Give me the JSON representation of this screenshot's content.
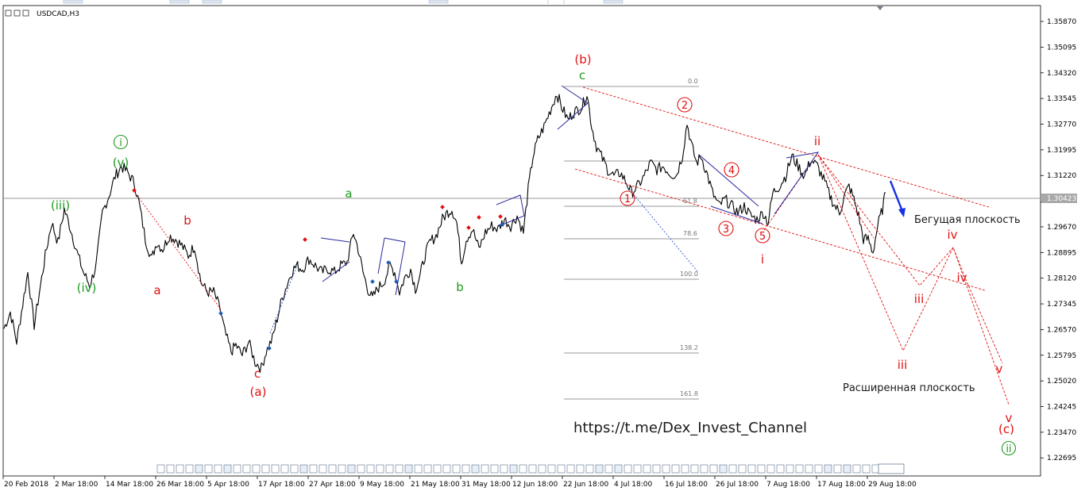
{
  "window": {
    "symbol_label": "USDCAD,H3"
  },
  "chart_data": {
    "type": "line",
    "symbol": "USDCAD",
    "timeframe": "H3",
    "ylim": [
      1.2215,
      1.3635
    ],
    "y_ticks": [
      "1.35870",
      "1.35095",
      "1.34320",
      "1.33545",
      "1.32770",
      "1.31995",
      "1.31220",
      "1.30423",
      "1.29670",
      "1.28895",
      "1.28120",
      "1.27345",
      "1.26570",
      "1.25795",
      "1.25020",
      "1.24245",
      "1.23470",
      "1.22695"
    ],
    "x_ticks": [
      "20 Feb 2018",
      "2 Mar 18:00",
      "14 Mar 18:00",
      "26 Mar 18:00",
      "5 Apr 18:00",
      "17 Apr 18:00",
      "27 Apr 18:00",
      "9 May 18:00",
      "21 May 18:00",
      "31 May 18:00",
      "12 Jun 18:00",
      "22 Jun 18:00",
      "4 Jul 18:00",
      "16 Jul 18:00",
      "26 Jul 18:00",
      "7 Aug 18:00",
      "17 Aug 18:00",
      "29 Aug 18:00"
    ],
    "current_price": "1.30423",
    "series": [
      {
        "values": [
          [
            0,
            1.266
          ],
          [
            8,
            1.271
          ],
          [
            16,
            1.262
          ],
          [
            22,
            1.271
          ],
          [
            30,
            1.283
          ],
          [
            38,
            1.267
          ],
          [
            46,
            1.279
          ],
          [
            52,
            1.288
          ],
          [
            60,
            1.298
          ],
          [
            68,
            1.292
          ],
          [
            76,
            1.302
          ],
          [
            84,
            1.296
          ],
          [
            92,
            1.289
          ],
          [
            100,
            1.283
          ],
          [
            108,
            1.279
          ],
          [
            116,
            1.285
          ],
          [
            124,
            1.301
          ],
          [
            132,
            1.306
          ],
          [
            140,
            1.312
          ],
          [
            148,
            1.315
          ],
          [
            156,
            1.313
          ],
          [
            164,
            1.31
          ],
          [
            170,
            1.304
          ],
          [
            178,
            1.293
          ],
          [
            186,
            1.287
          ],
          [
            192,
            1.292
          ],
          [
            200,
            1.29
          ],
          [
            208,
            1.294
          ],
          [
            216,
            1.293
          ],
          [
            224,
            1.291
          ],
          [
            232,
            1.288
          ],
          [
            240,
            1.291
          ],
          [
            248,
            1.28
          ],
          [
            256,
            1.277
          ],
          [
            264,
            1.277
          ],
          [
            272,
            1.272
          ],
          [
            278,
            1.265
          ],
          [
            286,
            1.259
          ],
          [
            292,
            1.261
          ],
          [
            300,
            1.258
          ],
          [
            308,
            1.262
          ],
          [
            316,
            1.256
          ],
          [
            324,
            1.254
          ],
          [
            330,
            1.259
          ],
          [
            338,
            1.263
          ],
          [
            344,
            1.269
          ],
          [
            350,
            1.275
          ],
          [
            356,
            1.279
          ],
          [
            362,
            1.283
          ],
          [
            368,
            1.285
          ],
          [
            376,
            1.284
          ],
          [
            384,
            1.287
          ],
          [
            392,
            1.285
          ],
          [
            400,
            1.283
          ],
          [
            408,
            1.284
          ],
          [
            416,
            1.283
          ],
          [
            424,
            1.285
          ],
          [
            432,
            1.286
          ],
          [
            440,
            1.295
          ],
          [
            446,
            1.29
          ],
          [
            452,
            1.283
          ],
          [
            458,
            1.278
          ],
          [
            464,
            1.275
          ],
          [
            470,
            1.278
          ],
          [
            478,
            1.28
          ],
          [
            486,
            1.285
          ],
          [
            492,
            1.283
          ],
          [
            498,
            1.277
          ],
          [
            504,
            1.281
          ],
          [
            512,
            1.284
          ],
          [
            518,
            1.278
          ],
          [
            524,
            1.282
          ],
          [
            530,
            1.288
          ],
          [
            536,
            1.292
          ],
          [
            544,
            1.294
          ],
          [
            552,
            1.299
          ],
          [
            558,
            1.301
          ],
          [
            564,
            1.302
          ],
          [
            570,
            1.298
          ],
          [
            576,
            1.286
          ],
          [
            582,
            1.293
          ],
          [
            590,
            1.296
          ],
          [
            598,
            1.29
          ],
          [
            606,
            1.295
          ],
          [
            614,
            1.297
          ],
          [
            622,
            1.296
          ],
          [
            630,
            1.299
          ],
          [
            638,
            1.297
          ],
          [
            646,
            1.3
          ],
          [
            654,
            1.295
          ],
          [
            660,
            1.308
          ],
          [
            666,
            1.318
          ],
          [
            672,
            1.323
          ],
          [
            680,
            1.327
          ],
          [
            688,
            1.332
          ],
          [
            696,
            1.337
          ],
          [
            702,
            1.333
          ],
          [
            710,
            1.329
          ],
          [
            716,
            1.331
          ],
          [
            722,
            1.332
          ],
          [
            728,
            1.333
          ],
          [
            734,
            1.337
          ],
          [
            740,
            1.327
          ],
          [
            746,
            1.321
          ],
          [
            752,
            1.318
          ],
          [
            760,
            1.314
          ],
          [
            768,
            1.312
          ],
          [
            776,
            1.313
          ],
          [
            784,
            1.31
          ],
          [
            790,
            1.307
          ],
          [
            798,
            1.309
          ],
          [
            806,
            1.312
          ],
          [
            814,
            1.316
          ],
          [
            822,
            1.314
          ],
          [
            830,
            1.315
          ],
          [
            838,
            1.313
          ],
          [
            846,
            1.312
          ],
          [
            854,
            1.318
          ],
          [
            860,
            1.328
          ],
          [
            866,
            1.321
          ],
          [
            872,
            1.316
          ],
          [
            878,
            1.318
          ],
          [
            886,
            1.312
          ],
          [
            892,
            1.307
          ],
          [
            900,
            1.303
          ],
          [
            908,
            1.305
          ],
          [
            916,
            1.303
          ],
          [
            924,
            1.301
          ],
          [
            932,
            1.303
          ],
          [
            940,
            1.3
          ],
          [
            948,
            1.299
          ],
          [
            956,
            1.301
          ],
          [
            962,
            1.298
          ],
          [
            968,
            1.307
          ],
          [
            976,
            1.309
          ],
          [
            984,
            1.312
          ],
          [
            992,
            1.318
          ],
          [
            1000,
            1.315
          ],
          [
            1008,
            1.312
          ],
          [
            1016,
            1.317
          ],
          [
            1024,
            1.315
          ],
          [
            1032,
            1.311
          ],
          [
            1040,
            1.306
          ],
          [
            1046,
            1.303
          ],
          [
            1052,
            1.301
          ],
          [
            1058,
            1.306
          ],
          [
            1064,
            1.309
          ],
          [
            1070,
            1.305
          ],
          [
            1076,
            1.3
          ],
          [
            1082,
            1.293
          ],
          [
            1088,
            1.293
          ],
          [
            1094,
            1.289
          ],
          [
            1100,
            1.297
          ],
          [
            1106,
            1.302
          ],
          [
            1110,
            1.307
          ]
        ]
      }
    ],
    "fibonacci_levels": [
      "0.0",
      "61.8",
      "78.6",
      "100.0",
      "138.2",
      "161.8"
    ],
    "wave_labels": {
      "green": [
        "i",
        "(v)",
        "(iii)",
        "(iv)",
        "a",
        "b",
        "c",
        "ii"
      ],
      "red": [
        "(b)",
        "2",
        "4",
        "ii",
        "iv",
        "b",
        "a",
        "c",
        "(a)",
        "1",
        "3",
        "5",
        "i",
        "iii",
        "iii",
        "iv",
        "v",
        "v",
        "(c)"
      ]
    },
    "annotations": [
      "Бегущая плоскость",
      "Расширенная плоскость",
      "https://t.me/Dex_Invest_Channel"
    ],
    "colors": {
      "price": "#000000",
      "wave_green": "#1f9a1f",
      "wave_red": "#e01010",
      "channel": "#2a2aa0",
      "arrow": "#1530e6",
      "grid": "#808080"
    }
  }
}
